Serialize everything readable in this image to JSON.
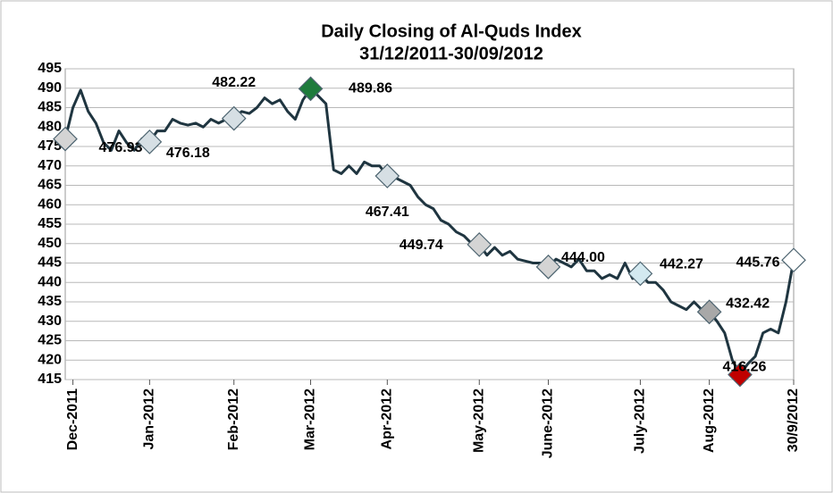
{
  "chart_data": {
    "type": "line",
    "title": "Daily Closing of Al-Quds Index",
    "subtitle": "31/12/2011-30/09/2012",
    "categories": [
      null,
      "Dec-2011",
      null,
      null,
      null,
      null,
      null,
      null,
      null,
      null,
      null,
      "Jan-2012",
      null,
      null,
      null,
      null,
      null,
      null,
      null,
      null,
      null,
      null,
      "Feb-2012",
      null,
      null,
      null,
      null,
      null,
      null,
      null,
      null,
      null,
      "Mar-2012",
      null,
      null,
      null,
      null,
      null,
      null,
      null,
      null,
      null,
      "Apr-2012",
      null,
      null,
      null,
      null,
      null,
      null,
      null,
      null,
      null,
      null,
      null,
      "May-2012",
      null,
      null,
      null,
      null,
      null,
      null,
      null,
      null,
      "June-2012",
      null,
      null,
      null,
      null,
      null,
      null,
      null,
      null,
      null,
      null,
      null,
      "July-2012",
      null,
      null,
      null,
      null,
      null,
      null,
      null,
      null,
      "Aug-2012",
      null,
      null,
      null,
      null,
      null,
      null,
      null,
      null,
      null,
      null,
      "30/9/2012"
    ],
    "series": [
      {
        "color": "#1f3540",
        "values": [
          476.93,
          485,
          489.5,
          484,
          481,
          476,
          474,
          479,
          476,
          474,
          477,
          476.18,
          479,
          479,
          482,
          481,
          480.5,
          481,
          480,
          482,
          481,
          482,
          482.22,
          484,
          483.5,
          485,
          487.5,
          486,
          487,
          484,
          482,
          487,
          489.86,
          488,
          486,
          469,
          468,
          470,
          468,
          471,
          470,
          470,
          467.41,
          467,
          466,
          465,
          462,
          460,
          459,
          456,
          455,
          453,
          452,
          450,
          449.74,
          447,
          449,
          447,
          448,
          446,
          445.5,
          445,
          445,
          444,
          446,
          445,
          444,
          446,
          443,
          443,
          441,
          442,
          441,
          445,
          441,
          442.27,
          440,
          440,
          438,
          435,
          434,
          433,
          435,
          433,
          432.42,
          430,
          427,
          420,
          416.26,
          419,
          421,
          427,
          428,
          427,
          435,
          445.76
        ]
      },
      {
        "values": [
          476.93,
          null,
          null,
          null,
          null,
          null,
          null,
          null,
          null,
          null,
          null,
          476.18,
          null,
          null,
          null,
          null,
          null,
          null,
          null,
          null,
          null,
          null,
          482.22,
          null,
          null,
          null,
          null,
          null,
          null,
          null,
          null,
          null,
          489.86,
          null,
          null,
          null,
          null,
          null,
          null,
          null,
          null,
          null,
          467.41,
          null,
          null,
          null,
          null,
          null,
          null,
          null,
          null,
          null,
          null,
          null,
          449.74,
          null,
          null,
          null,
          null,
          null,
          null,
          null,
          null,
          444,
          null,
          null,
          null,
          null,
          null,
          null,
          null,
          null,
          null,
          null,
          null,
          442.27,
          null,
          null,
          null,
          null,
          null,
          null,
          null,
          null,
          432.42,
          null,
          null,
          null,
          416.26,
          null,
          null,
          null,
          null,
          null,
          null,
          445.76
        ],
        "value_labels": [
          "476.93",
          null,
          null,
          null,
          null,
          null,
          null,
          null,
          null,
          null,
          null,
          "476.18",
          null,
          null,
          null,
          null,
          null,
          null,
          null,
          null,
          null,
          null,
          "482.22",
          null,
          null,
          null,
          null,
          null,
          null,
          null,
          null,
          null,
          "489.86",
          null,
          null,
          null,
          null,
          null,
          null,
          null,
          null,
          null,
          "467.41",
          null,
          null,
          null,
          null,
          null,
          null,
          null,
          null,
          null,
          null,
          null,
          "449.74",
          null,
          null,
          null,
          null,
          null,
          null,
          null,
          null,
          "444.00",
          null,
          null,
          null,
          null,
          null,
          null,
          null,
          null,
          null,
          null,
          null,
          "442.27",
          null,
          null,
          null,
          null,
          null,
          null,
          null,
          null,
          "432.42",
          null,
          null,
          null,
          "416.26",
          null,
          null,
          null,
          null,
          null,
          null,
          "445.76"
        ],
        "colors": [
          "#d4d4d4",
          null,
          null,
          null,
          null,
          null,
          null,
          null,
          null,
          null,
          null,
          "#d6dfe4",
          null,
          null,
          null,
          null,
          null,
          null,
          null,
          null,
          null,
          null,
          "#d6dfe4",
          null,
          null,
          null,
          null,
          null,
          null,
          null,
          null,
          null,
          "#1e7b3c",
          null,
          null,
          null,
          null,
          null,
          null,
          null,
          null,
          null,
          "#d6dfe4",
          null,
          null,
          null,
          null,
          null,
          null,
          null,
          null,
          null,
          null,
          null,
          "#d4d4d4",
          null,
          null,
          null,
          null,
          null,
          null,
          null,
          null,
          "#d4d4d4",
          null,
          null,
          null,
          null,
          null,
          null,
          null,
          null,
          null,
          null,
          null,
          "#d3e9f0",
          null,
          null,
          null,
          null,
          null,
          null,
          null,
          null,
          "#a8a8a8",
          null,
          null,
          null,
          "#c00000",
          null,
          null,
          null,
          null,
          null,
          null,
          "#ffffff"
        ]
      }
    ],
    "ylim": [
      415,
      495
    ],
    "yticks": [
      415,
      420,
      425,
      430,
      435,
      440,
      445,
      450,
      455,
      460,
      465,
      470,
      475,
      480,
      485,
      490,
      495
    ],
    "grid": true
  }
}
